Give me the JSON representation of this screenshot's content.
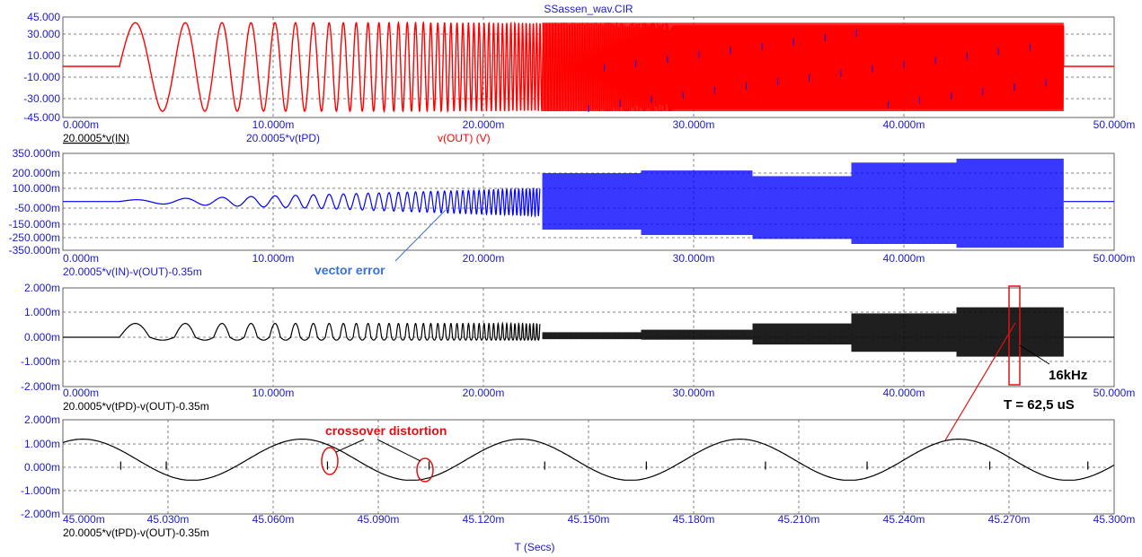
{
  "title": "SSassen_wav.CIR",
  "x_axis_title": "T (Secs)",
  "colors": {
    "tick_text": "#1a1acc",
    "grid": "#808080",
    "black_trace": "#000000",
    "red_trace": "#ff0000",
    "blue_trace": "#0000ff",
    "annotation_red": "#e01010",
    "annotation_blue": "#3a6fd8"
  },
  "chart_data": [
    {
      "type": "line",
      "xlim": [
        0,
        50
      ],
      "x_unit": "m",
      "x_ticks": [
        "0.000m",
        "10.000m",
        "20.000m",
        "30.000m",
        "40.000m",
        "50.000m"
      ],
      "ylim": [
        -45,
        45
      ],
      "y_ticks": [
        "45.000",
        "30.000",
        "10.000",
        "-10.000",
        "-30.000",
        "-45.000"
      ],
      "y_tick_values": [
        45,
        30,
        10,
        -10,
        -30,
        -45
      ],
      "grid": true,
      "series": [
        {
          "name": "20.0005*v(IN)",
          "color": "#000000",
          "underline": true
        },
        {
          "name": "20.0005*v(tPD)",
          "color": "#1a1acc"
        },
        {
          "name": "v(OUT) (V)",
          "color": "#ff0000",
          "amplitude": 40,
          "signal_start": 2.7,
          "signal_end": 47.6
        }
      ]
    },
    {
      "type": "line",
      "xlim": [
        0,
        50
      ],
      "x_ticks": [
        "0.000m",
        "10.000m",
        "20.000m",
        "30.000m",
        "40.000m",
        "50.000m"
      ],
      "ylim": [
        -350,
        350
      ],
      "y_ticks": [
        "350.000m",
        "200.000m",
        "100.000m",
        "-50.000m",
        "-150.000m",
        "-250.000m",
        "-350.000m"
      ],
      "y_tick_values": [
        350,
        200,
        100,
        -50,
        -150,
        -250,
        -350
      ],
      "grid": true,
      "series": [
        {
          "name": "20.0005*v(IN)-v(OUT)-0.35m",
          "color": "#1a1acc",
          "envelope_max": 300
        }
      ],
      "annotation": "vector error"
    },
    {
      "type": "line",
      "xlim": [
        0,
        50
      ],
      "x_ticks": [
        "0.000m",
        "10.000m",
        "20.000m",
        "30.000m",
        "40.000m",
        "50.000m"
      ],
      "ylim": [
        -2,
        2
      ],
      "y_ticks": [
        "2.000m",
        "1.000m",
        "0.000m",
        "-1.000m",
        "-2.000m"
      ],
      "y_tick_values": [
        2,
        1,
        0,
        -1,
        -2
      ],
      "grid": true,
      "series": [
        {
          "name": "20.0005*v(tPD)-v(OUT)-0.35m",
          "color": "#000000",
          "envelope_max": 1.2
        }
      ],
      "annotations": [
        "16kHz",
        "T = 62,5 uS"
      ]
    },
    {
      "type": "line",
      "xlim": [
        45.0,
        45.3
      ],
      "x_ticks": [
        "45.000m",
        "45.030m",
        "45.060m",
        "45.090m",
        "45.120m",
        "45.150m",
        "45.180m",
        "45.210m",
        "45.240m",
        "45.270m",
        "45.300m"
      ],
      "ylim": [
        -2,
        2
      ],
      "y_ticks": [
        "2.000m",
        "1.000m",
        "0.000m",
        "-1.000m",
        "-2.000m"
      ],
      "y_tick_values": [
        2,
        1,
        0,
        -1,
        -2
      ],
      "grid": true,
      "series": [
        {
          "name": "20.0005*v(tPD)-v(OUT)-0.35m",
          "color": "#000000",
          "period": 0.0625,
          "offset": 0.32,
          "amplitude": 0.88
        }
      ],
      "annotation": "crossover distortion"
    }
  ]
}
